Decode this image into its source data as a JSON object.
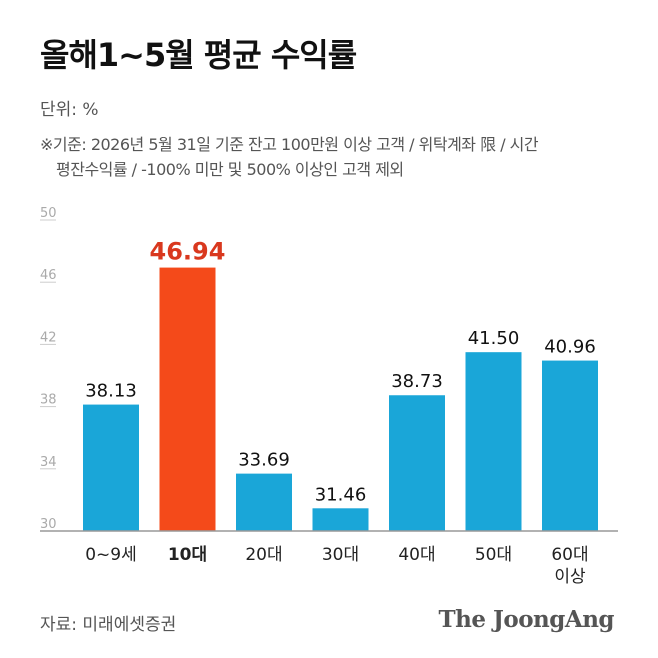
{
  "title": "올해1~5월 평균 수익률",
  "unit_label": "단위: %",
  "note_line1": "※기준: 2026년 5월 31일 기준 잔고 100만원 이상  고객 / 위탁계좌 限 / 시간",
  "note_line2": "평잔수익률 / -100% 미만 및 500% 이상인 고객 제외",
  "source": "자료: 미래에셋증권",
  "logo": "The JoongAng",
  "colors": {
    "bar": "#1aa6d8",
    "highlight": "#f44a1a",
    "highlight_label": "#d9381e",
    "axis": "#999999",
    "tick": "#aaaaaa"
  },
  "chart_data": {
    "type": "bar",
    "categories": [
      "0~9세",
      "10대",
      "20대",
      "30대",
      "40대",
      "50대",
      "60대\n이상"
    ],
    "values": [
      38.13,
      46.94,
      33.69,
      31.46,
      38.73,
      41.5,
      40.96
    ],
    "value_labels": [
      "38.13",
      "46.94",
      "33.69",
      "31.46",
      "38.73",
      "41.50",
      "40.96"
    ],
    "highlight_index": 1,
    "title": "올해1~5월 평균 수익률",
    "xlabel": "",
    "ylabel": "",
    "ylim": [
      30,
      50
    ],
    "yticks": [
      "30",
      "34",
      "38",
      "42",
      "46",
      "50"
    ],
    "grid": false
  }
}
